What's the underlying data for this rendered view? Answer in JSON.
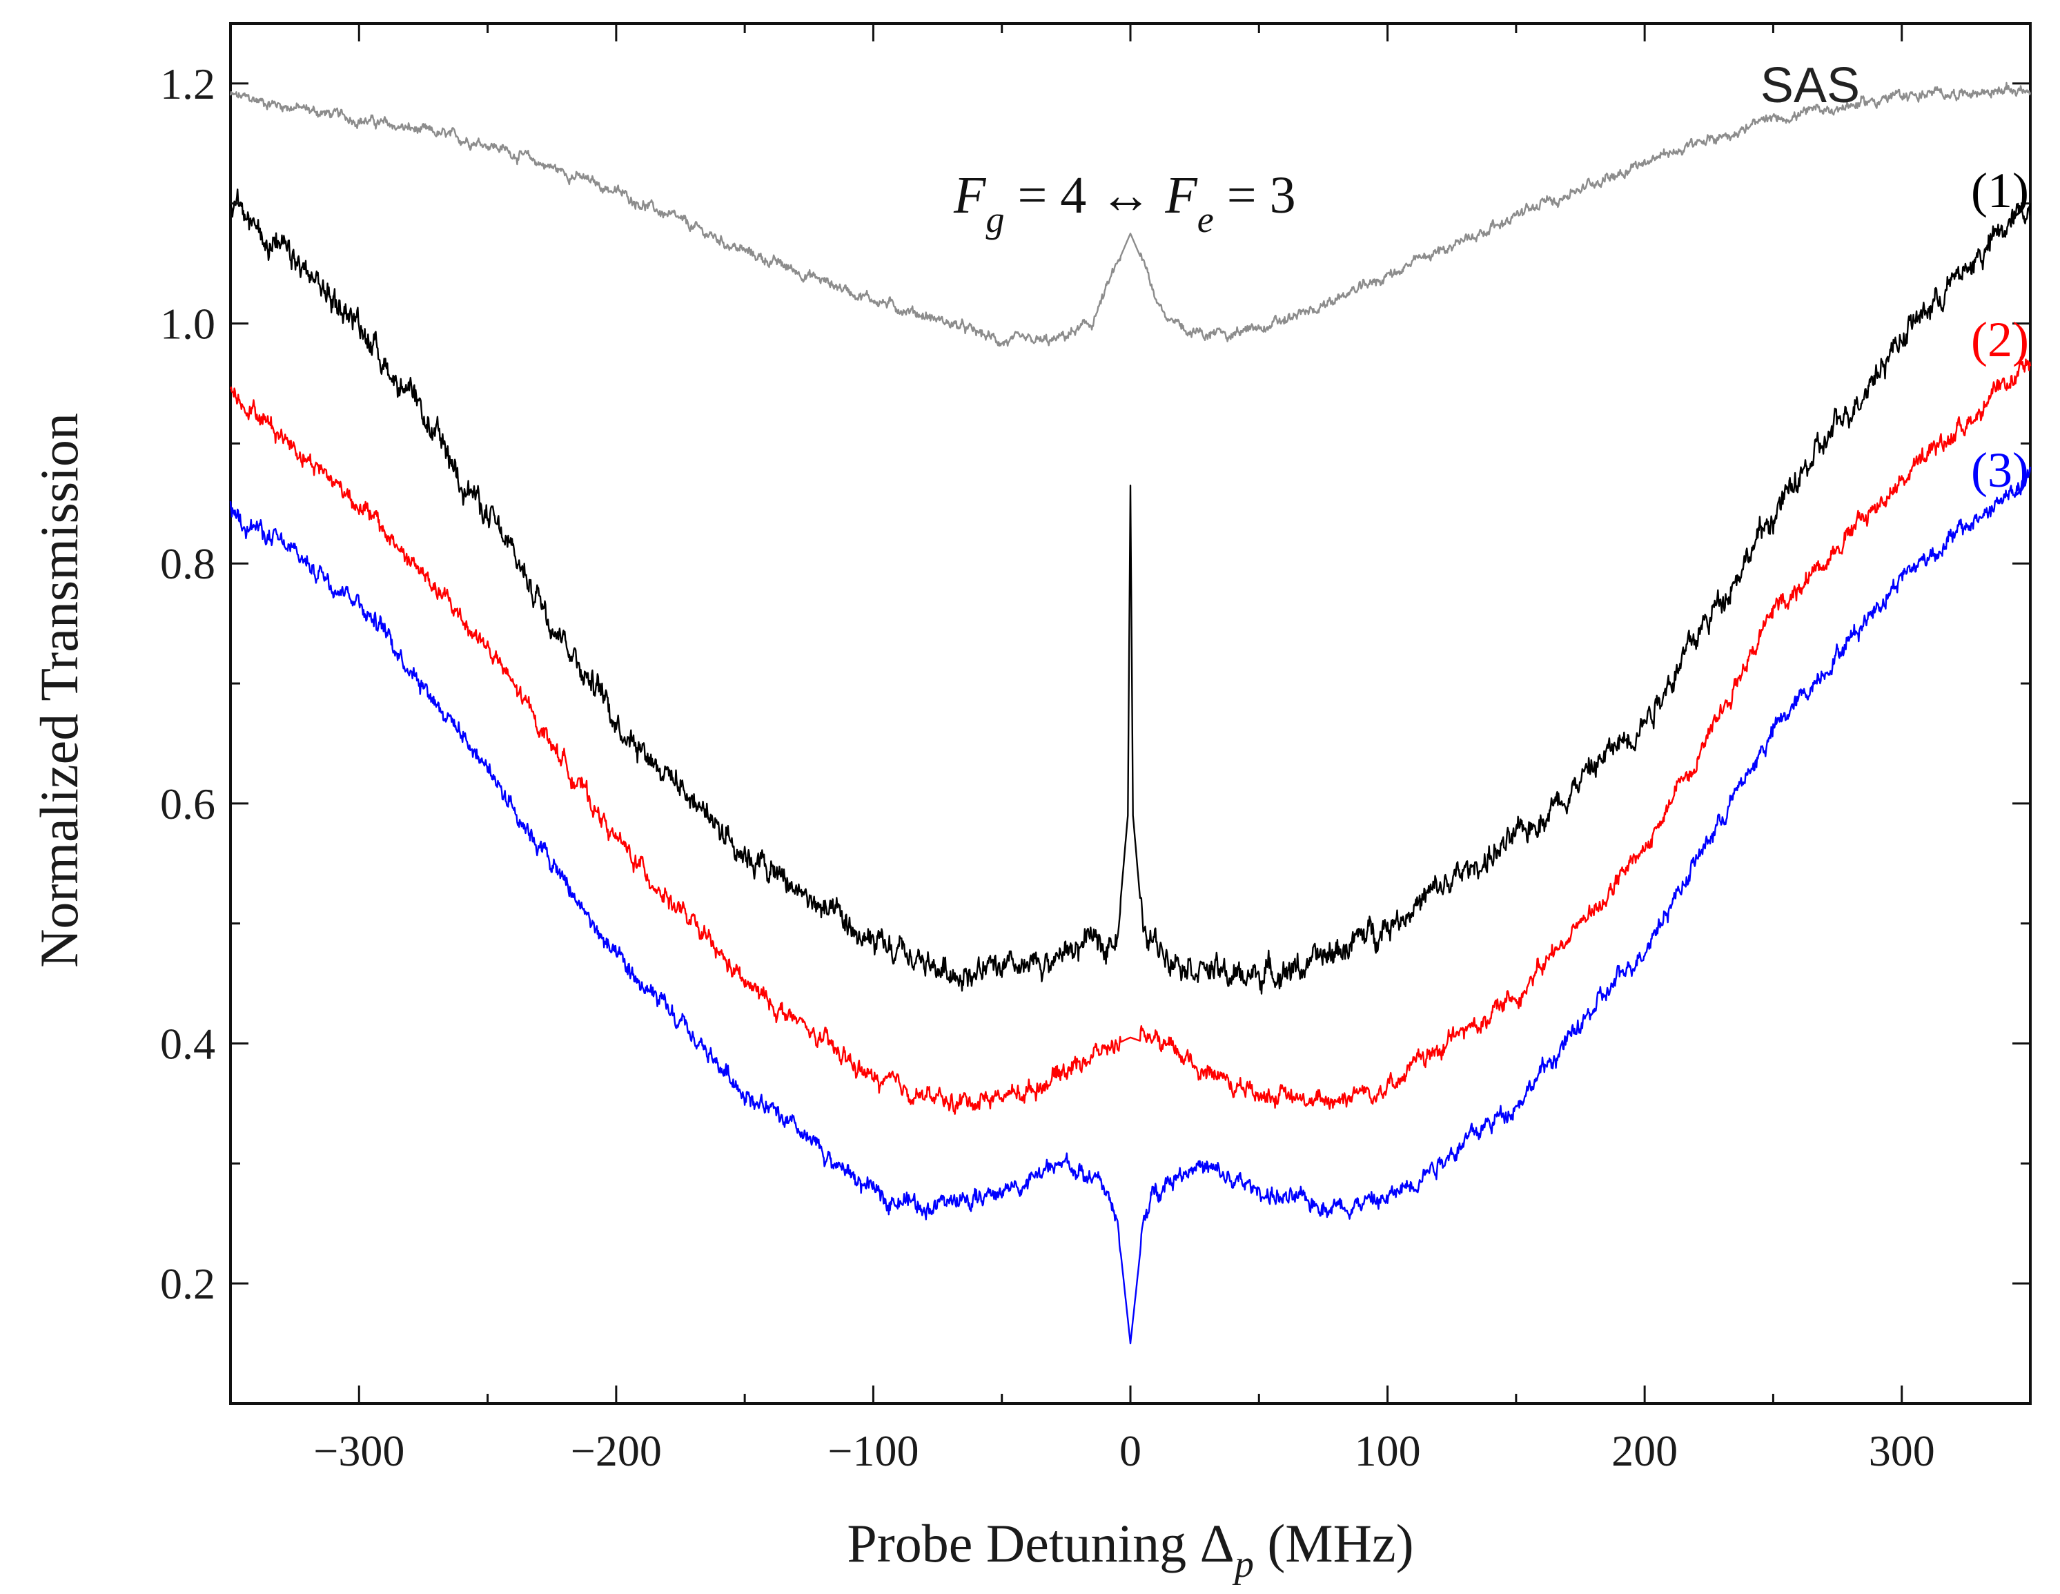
{
  "chart_data": {
    "type": "line",
    "title": "",
    "xlabel": {
      "main": "Probe Detuning ",
      "symbol": "Δ",
      "sub": "p",
      "unit": " (MHz)"
    },
    "ylabel": "Normalized Transmission",
    "xlim": [
      -350,
      350
    ],
    "ylim": [
      0.1,
      1.25
    ],
    "xticks": [
      -300,
      -200,
      -100,
      0,
      100,
      200,
      300
    ],
    "xtick_labels": [
      "−300",
      "−200",
      "−100",
      "0",
      "100",
      "200",
      "300"
    ],
    "yticks": [
      0.2,
      0.4,
      0.6,
      0.8,
      1.0,
      1.2
    ],
    "ytick_labels": [
      "0.2",
      "0.4",
      "0.6",
      "0.8",
      "1.0",
      "1.2"
    ],
    "annotation": {
      "f1": "F",
      "s1": "g",
      "mid": " = 4 ↔ ",
      "f2": "F",
      "s2": "e",
      "end": " = 3"
    },
    "series": [
      {
        "name": "SAS",
        "label": "SAS",
        "color": "#8c8c8c",
        "x": [
          -350,
          -300,
          -250,
          -200,
          -150,
          -100,
          -70,
          -50,
          -30,
          -15,
          -5,
          0,
          5,
          15,
          30,
          50,
          70,
          100,
          150,
          200,
          250,
          300,
          350
        ],
        "y": [
          1.19,
          1.17,
          1.15,
          1.11,
          1.06,
          1.02,
          1.0,
          0.985,
          0.985,
          1.0,
          1.05,
          1.075,
          1.05,
          1.0,
          0.99,
          0.995,
          1.01,
          1.04,
          1.09,
          1.135,
          1.17,
          1.19,
          1.195
        ],
        "noise": 0.004
      },
      {
        "name": "(1)",
        "label": "(1)",
        "color": "#000000",
        "x": [
          -350,
          -300,
          -250,
          -200,
          -150,
          -100,
          -70,
          -40,
          -20,
          -5,
          -1,
          0,
          1,
          5,
          20,
          40,
          70,
          100,
          150,
          200,
          250,
          300,
          350
        ],
        "y": [
          1.1,
          1.0,
          0.84,
          0.67,
          0.56,
          0.48,
          0.46,
          0.46,
          0.48,
          0.49,
          0.59,
          0.865,
          0.59,
          0.49,
          0.47,
          0.455,
          0.465,
          0.5,
          0.57,
          0.67,
          0.84,
          0.99,
          1.1
        ],
        "noise": 0.01
      },
      {
        "name": "(2)",
        "label": "(2)",
        "color": "#ff0000",
        "x": [
          -350,
          -300,
          -250,
          -200,
          -150,
          -100,
          -70,
          -40,
          -20,
          0,
          20,
          40,
          70,
          100,
          150,
          200,
          250,
          300,
          350
        ],
        "y": [
          0.945,
          0.85,
          0.73,
          0.57,
          0.45,
          0.37,
          0.35,
          0.36,
          0.385,
          0.405,
          0.39,
          0.365,
          0.35,
          0.365,
          0.44,
          0.56,
          0.76,
          0.87,
          0.965
        ],
        "noise": 0.007
      },
      {
        "name": "(3)",
        "label": "(3)",
        "color": "#0000ff",
        "x": [
          -350,
          -300,
          -250,
          -200,
          -150,
          -100,
          -80,
          -60,
          -40,
          -25,
          -10,
          -5,
          -2,
          0,
          2,
          5,
          10,
          25,
          40,
          60,
          80,
          100,
          150,
          200,
          250,
          300,
          350
        ],
        "y": [
          0.845,
          0.77,
          0.63,
          0.47,
          0.36,
          0.275,
          0.265,
          0.27,
          0.285,
          0.3,
          0.28,
          0.25,
          0.19,
          0.15,
          0.19,
          0.25,
          0.28,
          0.3,
          0.285,
          0.27,
          0.265,
          0.27,
          0.35,
          0.48,
          0.66,
          0.79,
          0.87
        ],
        "noise": 0.007
      }
    ]
  }
}
